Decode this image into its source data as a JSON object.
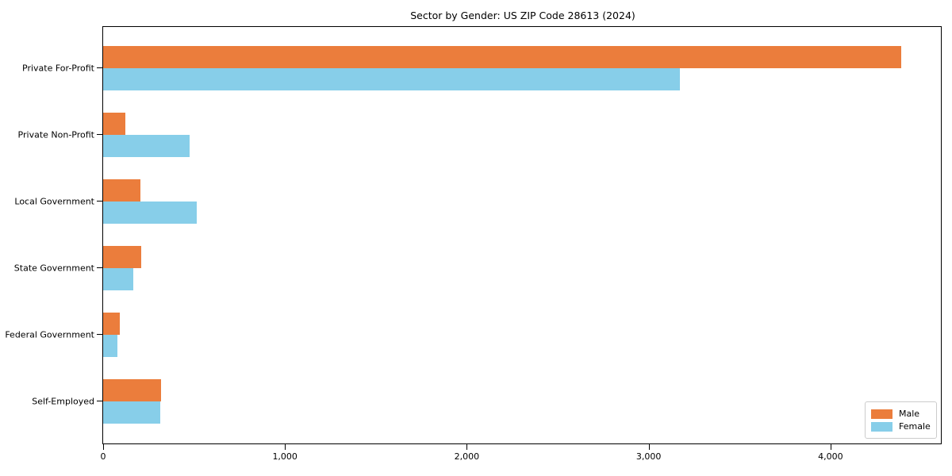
{
  "chart_data": {
    "type": "bar",
    "orientation": "horizontal",
    "title": "Sector by Gender: US ZIP Code 28613 (2024)",
    "categories": [
      "Private For-Profit",
      "Private Non-Profit",
      "Local Government",
      "State Government",
      "Federal Government",
      "Self-Employed"
    ],
    "series": [
      {
        "name": "Male",
        "color": "#eb7d3c",
        "values": [
          4390,
          122,
          205,
          210,
          90,
          318
        ]
      },
      {
        "name": "Female",
        "color": "#87cee9",
        "values": [
          3170,
          475,
          515,
          165,
          78,
          312
        ]
      }
    ],
    "xlabel": "",
    "ylabel": "",
    "xlim": [
      0,
      4607
    ],
    "xticks": {
      "values": [
        0,
        1000,
        2000,
        3000,
        4000
      ],
      "labels": [
        "0",
        "1,000",
        "2,000",
        "3,000",
        "4,000"
      ]
    },
    "grid": "off",
    "legend": {
      "position": "lower right",
      "entries": [
        "Male",
        "Female"
      ]
    }
  }
}
